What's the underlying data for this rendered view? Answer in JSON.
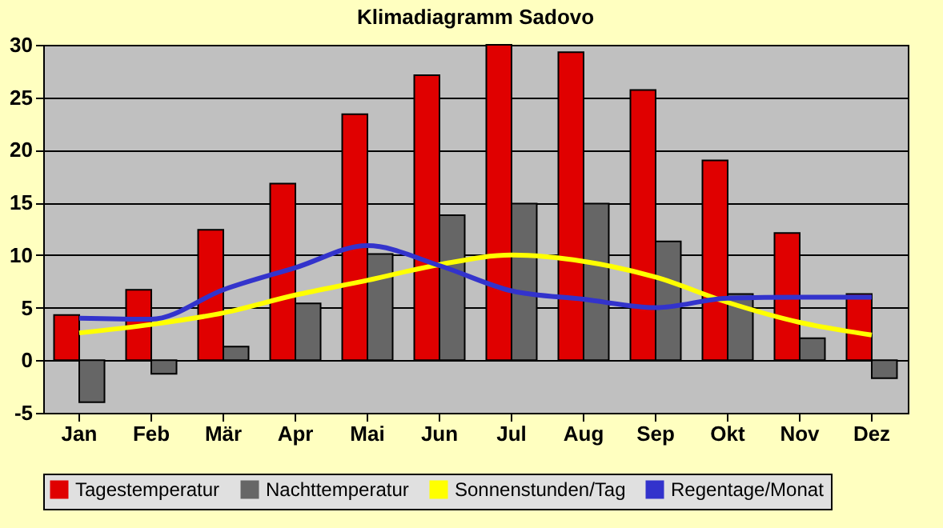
{
  "chart_data": {
    "type": "bar",
    "title": "Klimadiagramm Sadovo",
    "categories": [
      "Jan",
      "Feb",
      "Mär",
      "Apr",
      "Mai",
      "Jun",
      "Jul",
      "Aug",
      "Sep",
      "Okt",
      "Nov",
      "Dez"
    ],
    "series": [
      {
        "name": "Tagestemperatur",
        "color": "#e00000",
        "values": [
          4.3,
          6.7,
          12.4,
          16.8,
          23.4,
          27.1,
          30,
          29.3,
          25.7,
          19.0,
          12.1,
          6.3
        ]
      },
      {
        "name": "Nachttemperatur",
        "color": "#666666",
        "values": [
          -4.0,
          -1.3,
          1.3,
          5.4,
          10.1,
          13.8,
          14.9,
          14.9,
          11.3,
          6.3,
          2.1,
          -1.7
        ]
      },
      {
        "name": "Sonnenstunden/Tag",
        "type": "line",
        "color": "#ffff00",
        "values": [
          2.6,
          3.4,
          4.5,
          6.2,
          7.6,
          9.1,
          10.0,
          9.4,
          7.9,
          5.5,
          3.6,
          2.4
        ]
      },
      {
        "name": "Regentage/Monat",
        "type": "line",
        "color": "#3333cc",
        "values": [
          4.0,
          3.9,
          6.7,
          8.8,
          10.9,
          9.0,
          6.6,
          5.8,
          5.0,
          5.9,
          6.0,
          6.0
        ]
      }
    ],
    "ylim": [
      -5,
      30
    ],
    "yticks": [
      -5,
      0,
      5,
      10,
      15,
      20,
      25,
      30
    ],
    "grid": "y",
    "legend": "bottom",
    "marker": "none"
  }
}
